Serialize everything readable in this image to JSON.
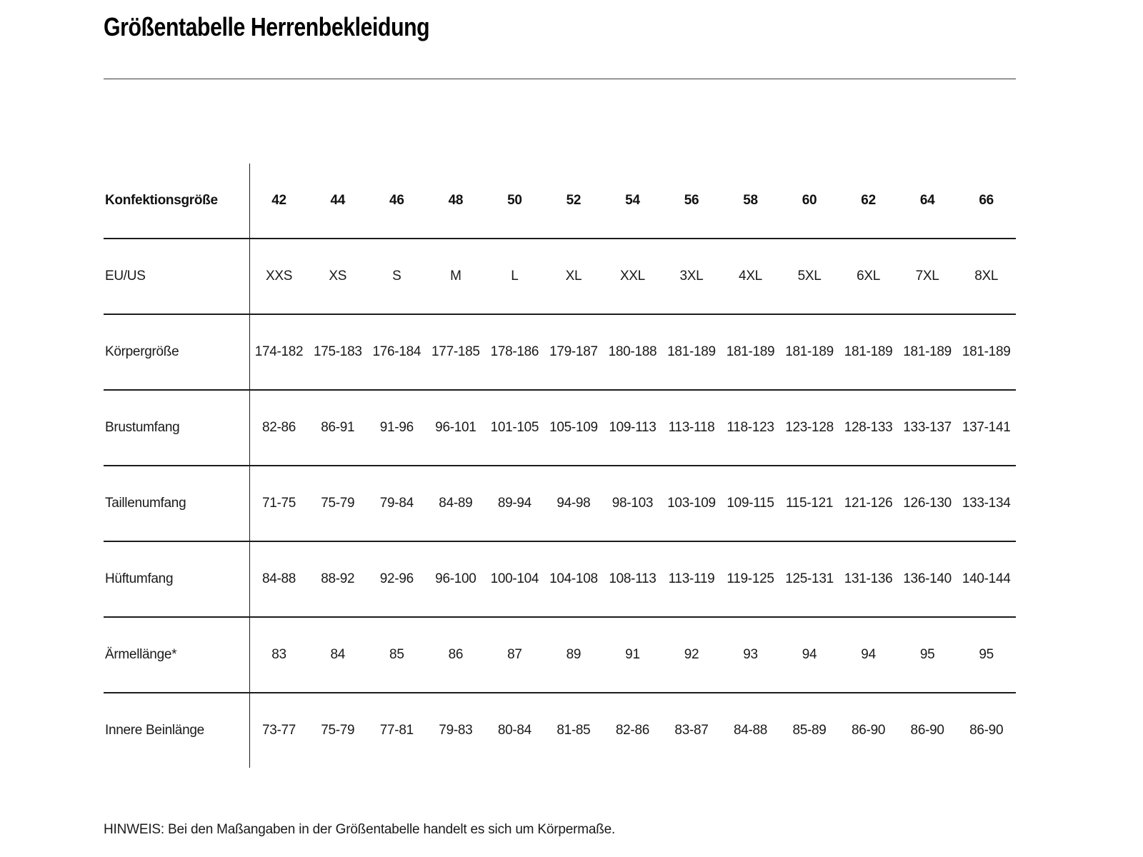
{
  "page": {
    "title": "Größentabelle Herrenbekleidung",
    "note": "HINWEIS: Bei den Maßangaben in der Größentabelle handelt es sich um Körpermaße."
  },
  "table": {
    "header": {
      "label": "Konfektionsgröße",
      "values": [
        "42",
        "44",
        "46",
        "48",
        "50",
        "52",
        "54",
        "56",
        "58",
        "60",
        "62",
        "64",
        "66"
      ]
    },
    "rows": [
      {
        "label": "EU/US",
        "values": [
          "XXS",
          "XS",
          "S",
          "M",
          "L",
          "XL",
          "XXL",
          "3XL",
          "4XL",
          "5XL",
          "6XL",
          "7XL",
          "8XL"
        ]
      },
      {
        "label": "Körpergröße",
        "values": [
          "174-182",
          "175-183",
          "176-184",
          "177-185",
          "178-186",
          "179-187",
          "180-188",
          "181-189",
          "181-189",
          "181-189",
          "181-189",
          "181-189",
          "181-189"
        ]
      },
      {
        "label": "Brustumfang",
        "values": [
          "82-86",
          "86-91",
          "91-96",
          "96-101",
          "101-105",
          "105-109",
          "109-113",
          "113-118",
          "118-123",
          "123-128",
          "128-133",
          "133-137",
          "137-141"
        ]
      },
      {
        "label": "Taillenumfang",
        "values": [
          "71-75",
          "75-79",
          "79-84",
          "84-89",
          "89-94",
          "94-98",
          "98-103",
          "103-109",
          "109-115",
          "115-121",
          "121-126",
          "126-130",
          "133-134"
        ]
      },
      {
        "label": "Hüftumfang",
        "values": [
          "84-88",
          "88-92",
          "92-96",
          "96-100",
          "100-104",
          "104-108",
          "108-113",
          "113-119",
          "119-125",
          "125-131",
          "131-136",
          "136-140",
          "140-144"
        ]
      },
      {
        "label": "Ärmellänge*",
        "values": [
          "83",
          "84",
          "85",
          "86",
          "87",
          "89",
          "91",
          "92",
          "93",
          "94",
          "94",
          "95",
          "95"
        ]
      },
      {
        "label": "Innere Beinlänge",
        "values": [
          "73-77",
          "75-79",
          "77-81",
          "79-83",
          "80-84",
          "81-85",
          "82-86",
          "83-87",
          "84-88",
          "85-89",
          "86-90",
          "86-90",
          "86-90"
        ]
      }
    ]
  },
  "colors": {
    "text": "#1a1a1a",
    "title": "#000000",
    "line": "#1c1c1c",
    "background": "#ffffff"
  }
}
